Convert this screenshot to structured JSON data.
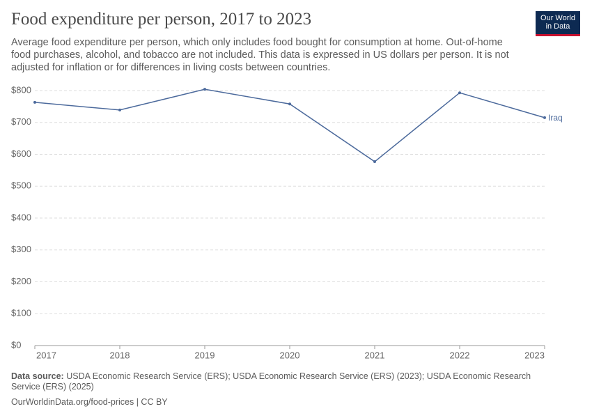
{
  "chart_data": {
    "type": "line",
    "title": "Food expenditure per person, 2017 to 2023",
    "subtitle": "Average food expenditure per person, which only includes food bought for consumption at home. Out-of-home food purchases, alcohol, and tobacco are not included. This data is expressed in US dollars per person. It is not adjusted for inflation or for differences in living costs between countries.",
    "logo": [
      "Our World",
      "in Data"
    ],
    "source_label": "Data source:",
    "source": "USDA Economic Research Service (ERS); USDA Economic Research Service (ERS) (2023); USDA Economic Research Service (ERS) (2025)",
    "footer": "OurWorldinData.org/food-prices | CC BY",
    "x": [
      2017,
      2018,
      2019,
      2020,
      2021,
      2022,
      2023
    ],
    "xlim": [
      2017,
      2023
    ],
    "xticks": [
      2017,
      2018,
      2019,
      2020,
      2021,
      2022,
      2023
    ],
    "series": [
      {
        "name": "Iraq",
        "color": "#4c6a9c",
        "values": [
          763,
          739,
          804,
          758,
          577,
          793,
          715
        ]
      }
    ],
    "ylim": [
      0,
      800
    ],
    "yticks": [
      {
        "value": 0,
        "label": "$0"
      },
      {
        "value": 100,
        "label": "$100"
      },
      {
        "value": 200,
        "label": "$200"
      },
      {
        "value": 300,
        "label": "$300"
      },
      {
        "value": 400,
        "label": "$400"
      },
      {
        "value": 500,
        "label": "$500"
      },
      {
        "value": 600,
        "label": "$600"
      },
      {
        "value": 700,
        "label": "$700"
      },
      {
        "value": 800,
        "label": "$800"
      }
    ],
    "grid": true
  }
}
